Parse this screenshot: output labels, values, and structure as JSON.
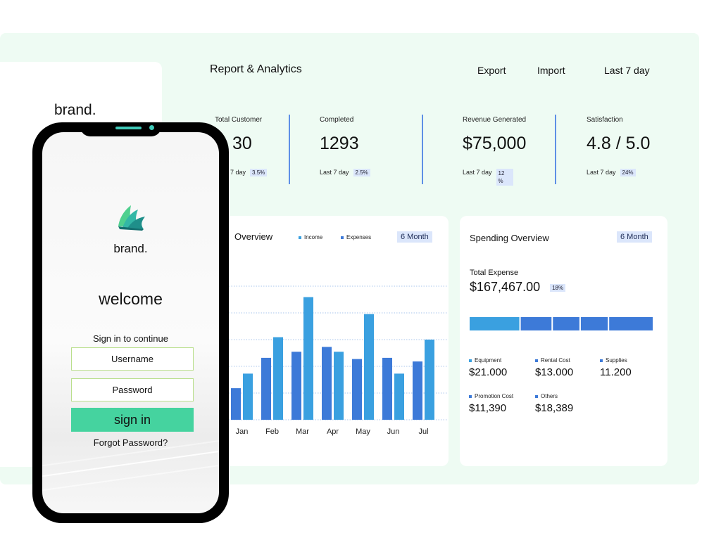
{
  "dashboard": {
    "sidebar_brand": "brand.",
    "title": "Report & Analytics",
    "nav": [
      {
        "label": "Export"
      },
      {
        "label": "Import"
      },
      {
        "label": "Last 7 day"
      }
    ],
    "stats": [
      {
        "label": "Total Customer",
        "value": "30",
        "period": "7 day",
        "change": "3.5%"
      },
      {
        "label": "Completed",
        "value": "1293",
        "period": "Last 7 day",
        "change": "2.5%"
      },
      {
        "label": "Revenue Generated",
        "value": "$75,000",
        "period": "Last 7 day",
        "change": "12 %"
      },
      {
        "label": "Satisfaction",
        "value": "4.8 / 5.0",
        "period": "Last 7 day",
        "change": "24%"
      }
    ],
    "accent_color": "#5e8fe6"
  },
  "overview": {
    "title": "Overview",
    "range_button": "6 Month",
    "legend": [
      {
        "name": "Income",
        "color": "#3aa0e0"
      },
      {
        "name": "Expenses",
        "color": "#3d7ad8"
      }
    ]
  },
  "chart_data": {
    "type": "bar",
    "categories": [
      "Jan",
      "Feb",
      "Mar",
      "Apr",
      "May",
      "Jun",
      "Jul"
    ],
    "series": [
      {
        "name": "Expenses",
        "values": [
          26,
          51,
          56,
          60,
          50,
          51,
          48
        ]
      },
      {
        "name": "Income",
        "values": [
          38,
          68,
          101,
          56,
          87,
          38,
          66
        ]
      }
    ],
    "ylim": [
      0,
      110
    ],
    "grid": true
  },
  "spending": {
    "title": "Spending Overview",
    "range_button": "6 Month",
    "total_label": "Total Expense",
    "total_value": "$167,467.00",
    "total_change": "18%",
    "categories": [
      {
        "name": "Equipment",
        "value": "$21.000",
        "amount": 21000,
        "color": "#3aa0e0"
      },
      {
        "name": "Rental Cost",
        "value": "$13.000",
        "amount": 13000,
        "color": "#3d7ad8"
      },
      {
        "name": "Supplies",
        "value": "11.200",
        "amount": 11200,
        "color": "#3d7ad8"
      },
      {
        "name": "Promotion Cost",
        "value": "$11,390",
        "amount": 11390,
        "color": "#3d7ad8"
      },
      {
        "name": "Others",
        "value": "$18,389",
        "amount": 18389,
        "color": "#3d7ad8"
      }
    ]
  },
  "phone": {
    "brand": "brand.",
    "welcome": "welcome",
    "subtitle": "Sign in to continue",
    "username_placeholder": "Username",
    "password_placeholder": "Password",
    "signin_label": "sign in",
    "forgot_label": "Forgot Password?",
    "accent_color": "#45d39f",
    "logo_icon": "leaf-fan-logo-icon"
  }
}
